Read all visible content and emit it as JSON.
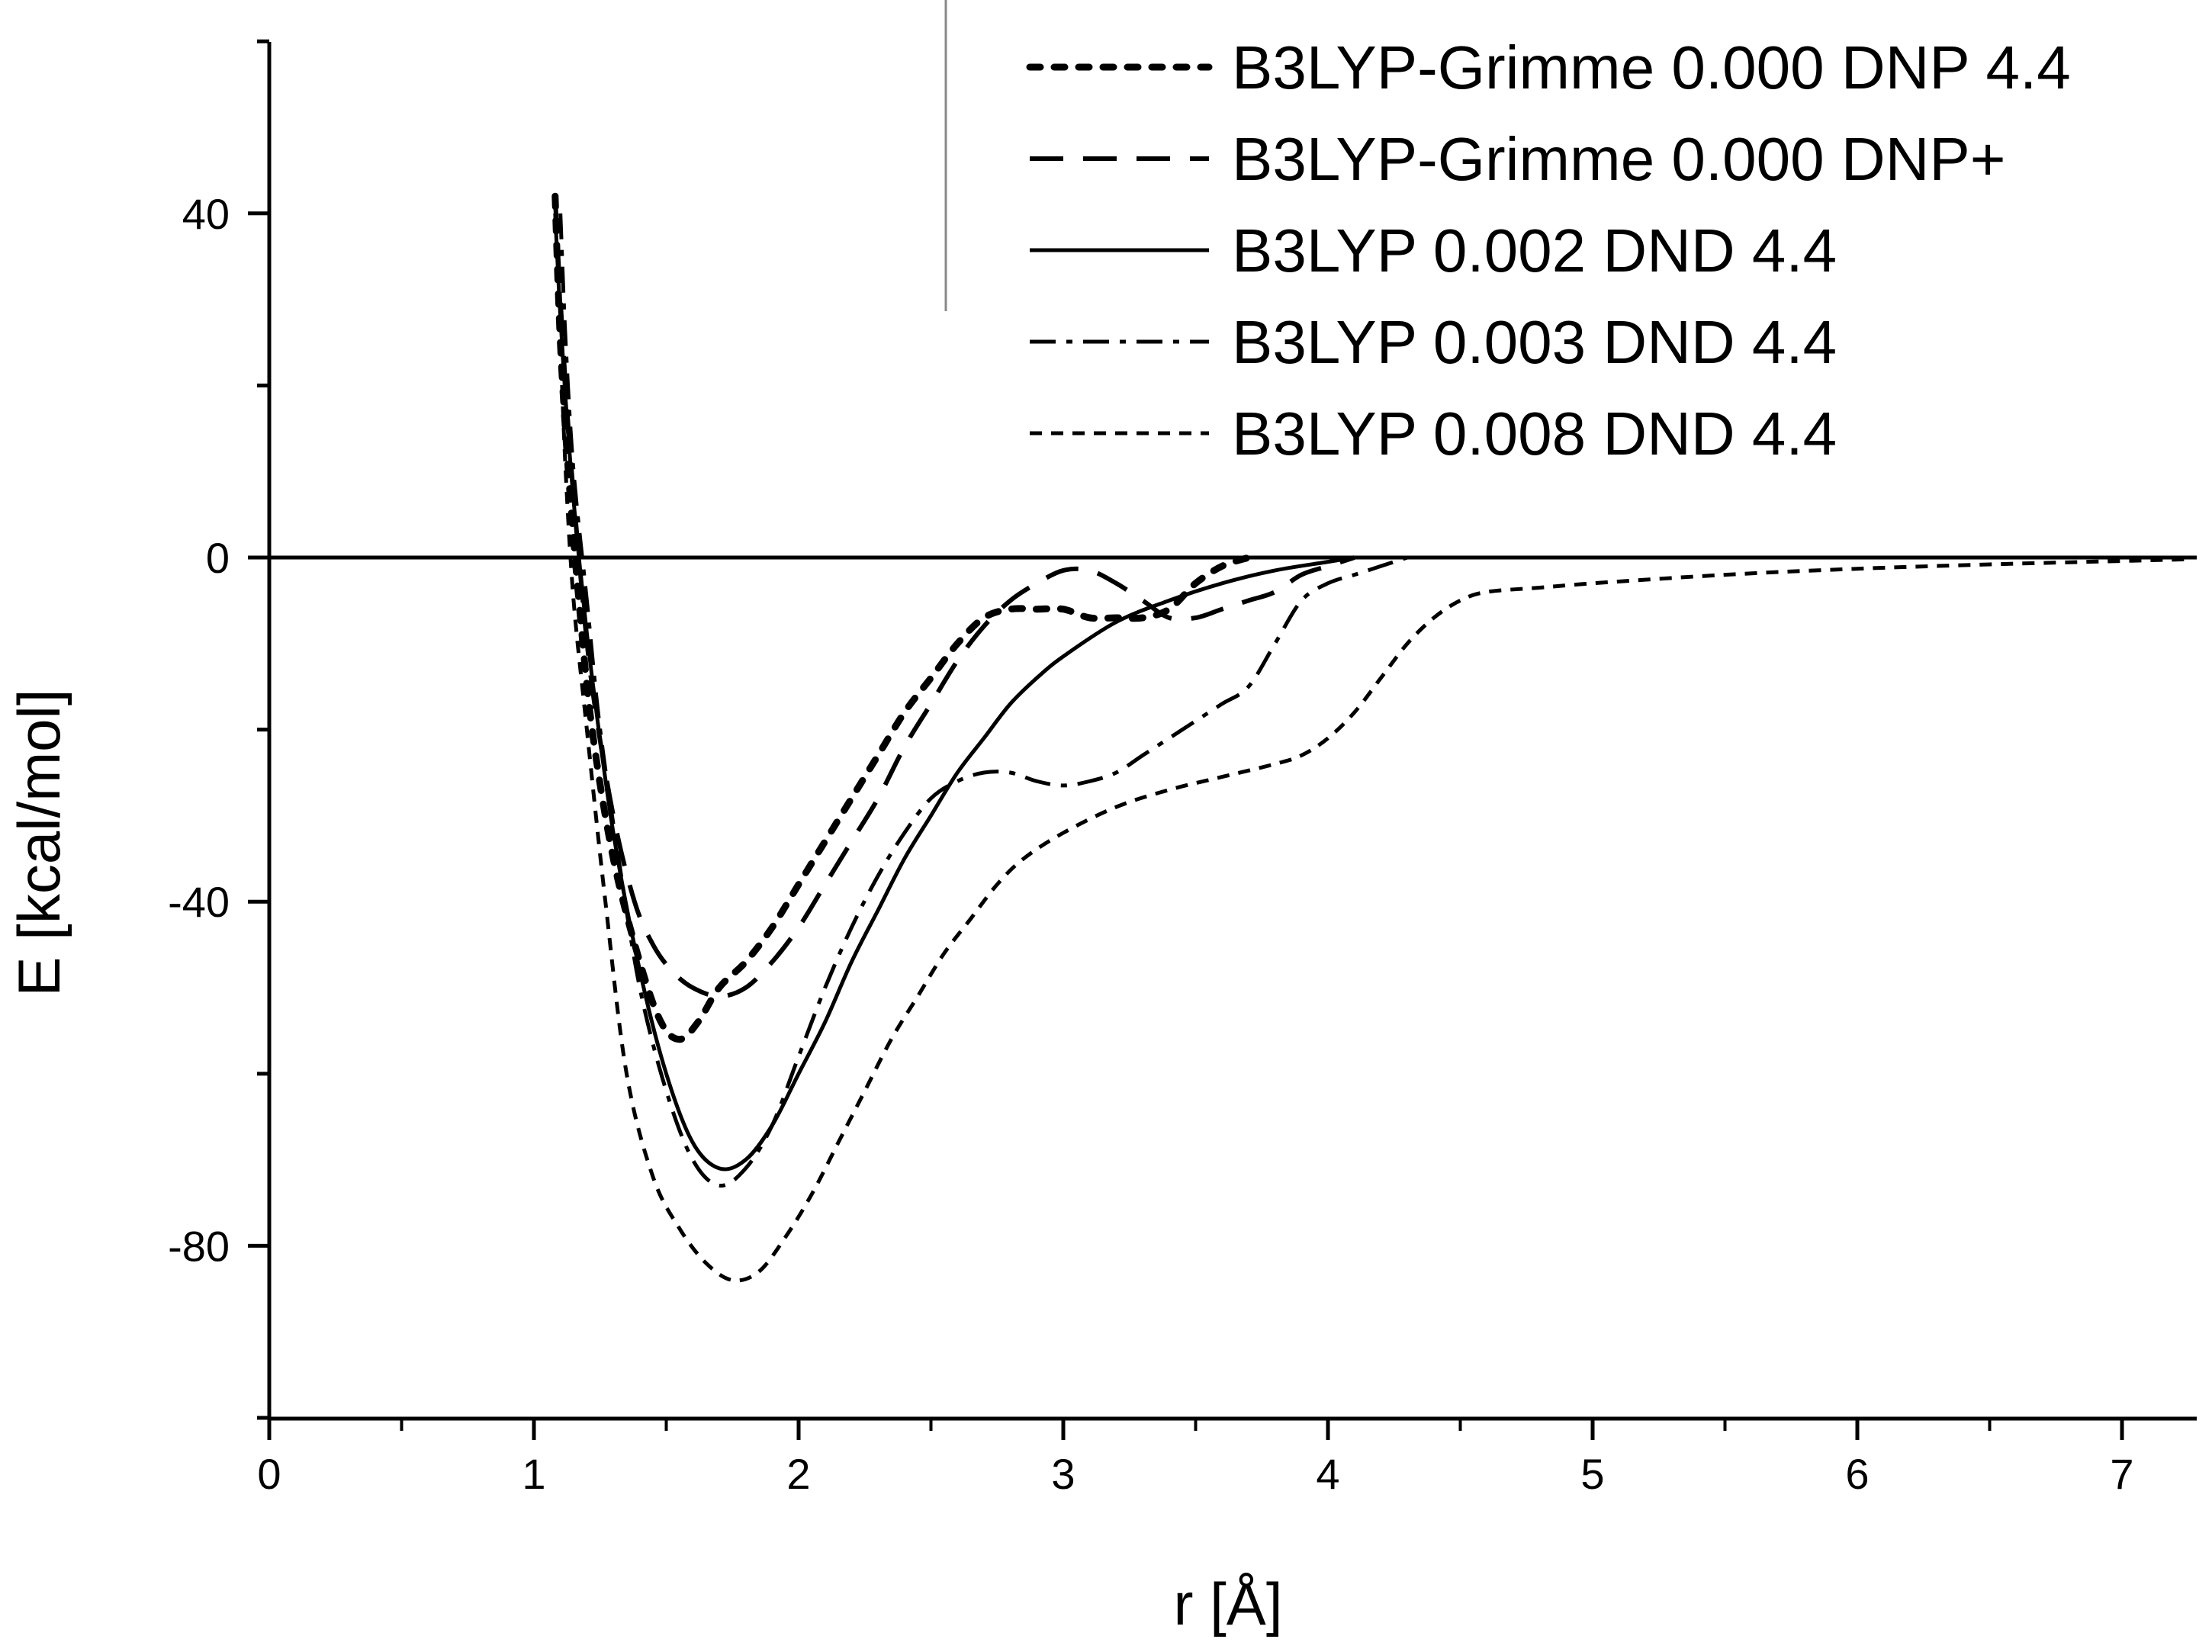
{
  "chart_data": {
    "type": "line",
    "title": "",
    "xlabel": "r [Å]",
    "ylabel": "E [kcal/mol]",
    "xlim": [
      0,
      7.25
    ],
    "ylim": [
      -100,
      60
    ],
    "x_ticks": [
      0,
      1,
      2,
      3,
      4,
      5,
      6,
      7
    ],
    "y_ticks": [
      40,
      0,
      -40,
      -80
    ],
    "x_tick_labels": [
      "0",
      "1",
      "2",
      "3",
      "4",
      "5",
      "6",
      "7"
    ],
    "y_tick_labels": [
      "40",
      "0",
      "-40",
      "-80"
    ],
    "grid": false,
    "legend_position": "top-right",
    "zero_line": true,
    "series": [
      {
        "name": "B3LYP-Grimme 0.000 DNP 4.4",
        "style": "dotted-bold",
        "color": "#000000",
        "points": [
          [
            1.08,
            42
          ],
          [
            1.1,
            25
          ],
          [
            1.13,
            10
          ],
          [
            1.17,
            -5
          ],
          [
            1.22,
            -20
          ],
          [
            1.3,
            -35
          ],
          [
            1.4,
            -47
          ],
          [
            1.48,
            -54
          ],
          [
            1.55,
            -56
          ],
          [
            1.62,
            -54
          ],
          [
            1.7,
            -50
          ],
          [
            1.8,
            -47
          ],
          [
            1.9,
            -43
          ],
          [
            2.0,
            -38
          ],
          [
            2.1,
            -33
          ],
          [
            2.2,
            -28
          ],
          [
            2.3,
            -23
          ],
          [
            2.4,
            -18
          ],
          [
            2.5,
            -14
          ],
          [
            2.6,
            -10
          ],
          [
            2.7,
            -7
          ],
          [
            2.8,
            -6
          ],
          [
            2.9,
            -6
          ],
          [
            3.0,
            -6
          ],
          [
            3.1,
            -7
          ],
          [
            3.2,
            -7
          ],
          [
            3.3,
            -7
          ],
          [
            3.4,
            -6
          ],
          [
            3.5,
            -3
          ],
          [
            3.6,
            -1
          ],
          [
            3.7,
            0
          ]
        ]
      },
      {
        "name": "B3LYP-Grimme 0.000 DNP+",
        "style": "dashed",
        "color": "#000000",
        "points": [
          [
            1.08,
            42
          ],
          [
            1.1,
            30
          ],
          [
            1.13,
            15
          ],
          [
            1.17,
            0
          ],
          [
            1.22,
            -15
          ],
          [
            1.3,
            -30
          ],
          [
            1.38,
            -40
          ],
          [
            1.45,
            -45
          ],
          [
            1.52,
            -48
          ],
          [
            1.6,
            -50
          ],
          [
            1.7,
            -51
          ],
          [
            1.8,
            -50
          ],
          [
            1.9,
            -47
          ],
          [
            2.0,
            -43
          ],
          [
            2.1,
            -38
          ],
          [
            2.2,
            -33
          ],
          [
            2.3,
            -28
          ],
          [
            2.4,
            -22
          ],
          [
            2.5,
            -17
          ],
          [
            2.6,
            -12
          ],
          [
            2.7,
            -8
          ],
          [
            2.8,
            -5
          ],
          [
            2.9,
            -3
          ],
          [
            3.0,
            -1.5
          ],
          [
            3.1,
            -1.5
          ],
          [
            3.2,
            -3
          ],
          [
            3.3,
            -5
          ],
          [
            3.4,
            -7
          ],
          [
            3.5,
            -7
          ],
          [
            3.6,
            -6
          ],
          [
            3.7,
            -5
          ],
          [
            3.8,
            -4
          ],
          [
            3.9,
            -2
          ],
          [
            4.0,
            -1
          ],
          [
            4.1,
            0
          ]
        ]
      },
      {
        "name": "B3LYP 0.002 DND 4.4",
        "style": "solid",
        "color": "#000000",
        "points": [
          [
            1.08,
            40
          ],
          [
            1.1,
            28
          ],
          [
            1.13,
            14
          ],
          [
            1.17,
            0
          ],
          [
            1.22,
            -14
          ],
          [
            1.3,
            -32
          ],
          [
            1.4,
            -48
          ],
          [
            1.5,
            -60
          ],
          [
            1.6,
            -68
          ],
          [
            1.7,
            -71
          ],
          [
            1.8,
            -70
          ],
          [
            1.9,
            -66
          ],
          [
            2.0,
            -60
          ],
          [
            2.1,
            -54
          ],
          [
            2.2,
            -47
          ],
          [
            2.3,
            -41
          ],
          [
            2.4,
            -35
          ],
          [
            2.5,
            -30
          ],
          [
            2.6,
            -25
          ],
          [
            2.7,
            -21
          ],
          [
            2.8,
            -17
          ],
          [
            2.9,
            -14
          ],
          [
            3.0,
            -11.5
          ],
          [
            3.2,
            -7.5
          ],
          [
            3.4,
            -5
          ],
          [
            3.6,
            -3
          ],
          [
            3.8,
            -1.5
          ],
          [
            4.0,
            -0.5
          ],
          [
            4.1,
            0
          ]
        ]
      },
      {
        "name": "B3LYP 0.003 DND 4.4",
        "style": "dash-dot",
        "color": "#000000",
        "points": [
          [
            1.1,
            40
          ],
          [
            1.12,
            25
          ],
          [
            1.15,
            10
          ],
          [
            1.2,
            -5
          ],
          [
            1.25,
            -20
          ],
          [
            1.32,
            -35
          ],
          [
            1.4,
            -50
          ],
          [
            1.5,
            -62
          ],
          [
            1.6,
            -70
          ],
          [
            1.7,
            -73
          ],
          [
            1.8,
            -71
          ],
          [
            1.9,
            -66
          ],
          [
            2.0,
            -58
          ],
          [
            2.1,
            -50
          ],
          [
            2.2,
            -43
          ],
          [
            2.3,
            -37
          ],
          [
            2.4,
            -32
          ],
          [
            2.5,
            -28
          ],
          [
            2.6,
            -26
          ],
          [
            2.7,
            -25
          ],
          [
            2.8,
            -25
          ],
          [
            2.9,
            -26
          ],
          [
            3.0,
            -26.5
          ],
          [
            3.1,
            -26
          ],
          [
            3.2,
            -25
          ],
          [
            3.3,
            -23
          ],
          [
            3.4,
            -21
          ],
          [
            3.5,
            -19
          ],
          [
            3.6,
            -17
          ],
          [
            3.7,
            -15
          ],
          [
            3.8,
            -10
          ],
          [
            3.9,
            -5
          ],
          [
            4.0,
            -3
          ],
          [
            4.1,
            -2
          ],
          [
            4.2,
            -1
          ],
          [
            4.3,
            0
          ]
        ]
      },
      {
        "name": "B3LYP 0.008 DND 4.4",
        "style": "short-dash",
        "color": "#000000",
        "points": [
          [
            1.1,
            25
          ],
          [
            1.12,
            10
          ],
          [
            1.15,
            -5
          ],
          [
            1.2,
            -20
          ],
          [
            1.27,
            -40
          ],
          [
            1.35,
            -60
          ],
          [
            1.45,
            -72
          ],
          [
            1.55,
            -78
          ],
          [
            1.65,
            -82
          ],
          [
            1.75,
            -84
          ],
          [
            1.85,
            -83
          ],
          [
            1.95,
            -79
          ],
          [
            2.05,
            -74
          ],
          [
            2.15,
            -68
          ],
          [
            2.25,
            -62
          ],
          [
            2.35,
            -56
          ],
          [
            2.45,
            -51
          ],
          [
            2.55,
            -46
          ],
          [
            2.65,
            -42
          ],
          [
            2.75,
            -38
          ],
          [
            2.85,
            -35
          ],
          [
            3.0,
            -32
          ],
          [
            3.2,
            -29
          ],
          [
            3.4,
            -27
          ],
          [
            3.6,
            -25.5
          ],
          [
            3.8,
            -24
          ],
          [
            3.9,
            -23
          ],
          [
            4.0,
            -21
          ],
          [
            4.1,
            -18
          ],
          [
            4.2,
            -14
          ],
          [
            4.3,
            -10
          ],
          [
            4.4,
            -7
          ],
          [
            4.5,
            -5
          ],
          [
            4.6,
            -4
          ],
          [
            4.8,
            -3.5
          ],
          [
            5.0,
            -3
          ],
          [
            5.5,
            -2
          ],
          [
            6.0,
            -1.3
          ],
          [
            6.5,
            -0.8
          ],
          [
            7.0,
            -0.4
          ],
          [
            7.25,
            -0.2
          ]
        ]
      }
    ]
  }
}
